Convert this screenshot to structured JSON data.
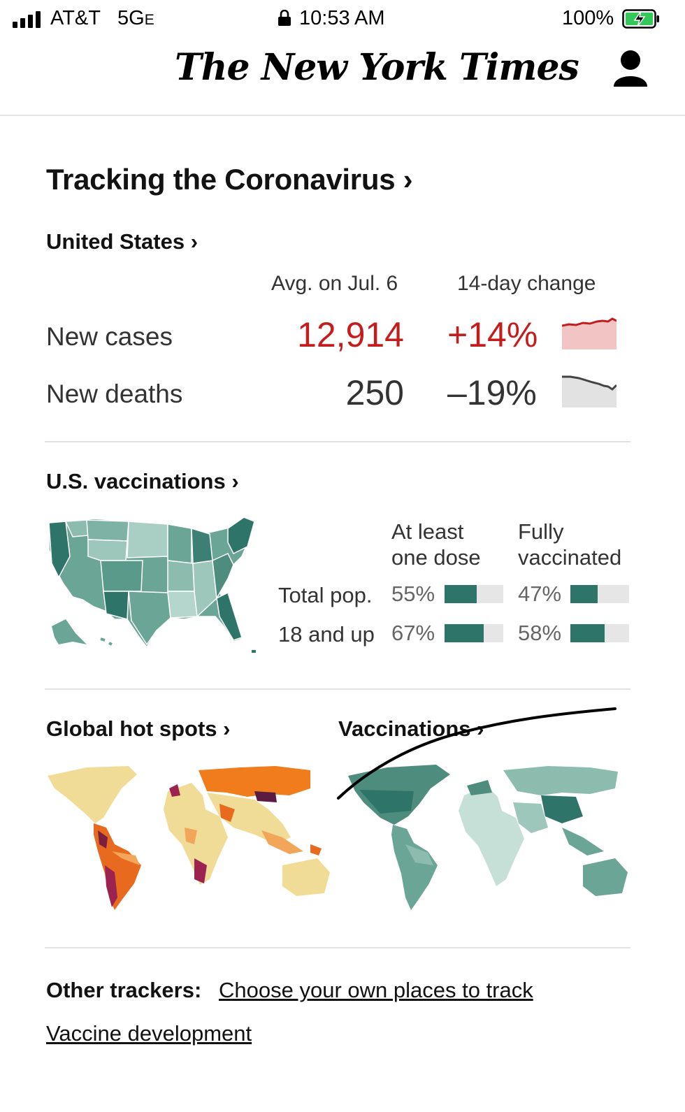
{
  "status_bar": {
    "carrier": "AT&T",
    "network": "5G",
    "network_suffix": "E",
    "time": "10:53 AM",
    "battery": "100%"
  },
  "masthead": {
    "logo": "The New York Times",
    "account_icon": "user-icon"
  },
  "tracker": {
    "title": "Tracking the Coronavirus ›",
    "us": {
      "heading": "United States ›",
      "col_avg": "Avg. on Jul. 6",
      "col_change": "14-day change",
      "rows": [
        {
          "label": "New cases",
          "value": "12,914",
          "change": "+14%",
          "trend_color": "#c41d1d"
        },
        {
          "label": "New deaths",
          "value": "250",
          "change": "–19%",
          "trend_color": "#555555"
        }
      ]
    },
    "vaccinations": {
      "heading": "U.S. vaccinations ›",
      "col1_line1": "At least",
      "col1_line2": "one dose",
      "col2_line1": "Fully",
      "col2_line2": "vaccinated",
      "rows": [
        {
          "label": "Total pop.",
          "dose_pct": "55%",
          "dose_fill": 0.55,
          "full_pct": "47%",
          "full_fill": 0.47
        },
        {
          "label": "18 and up",
          "dose_pct": "67%",
          "dose_fill": 0.67,
          "full_pct": "58%",
          "full_fill": 0.58
        }
      ]
    },
    "global": {
      "hotspots_heading": "Global hot spots ›",
      "vaccinations_heading": "Vaccinations ›"
    },
    "other": {
      "label": "Other trackers:",
      "link1": "Choose your own places to track",
      "link2": "Vaccine development"
    },
    "colors": {
      "accent_red": "#c41d1d",
      "vaccine_green": "#2f7468"
    }
  }
}
